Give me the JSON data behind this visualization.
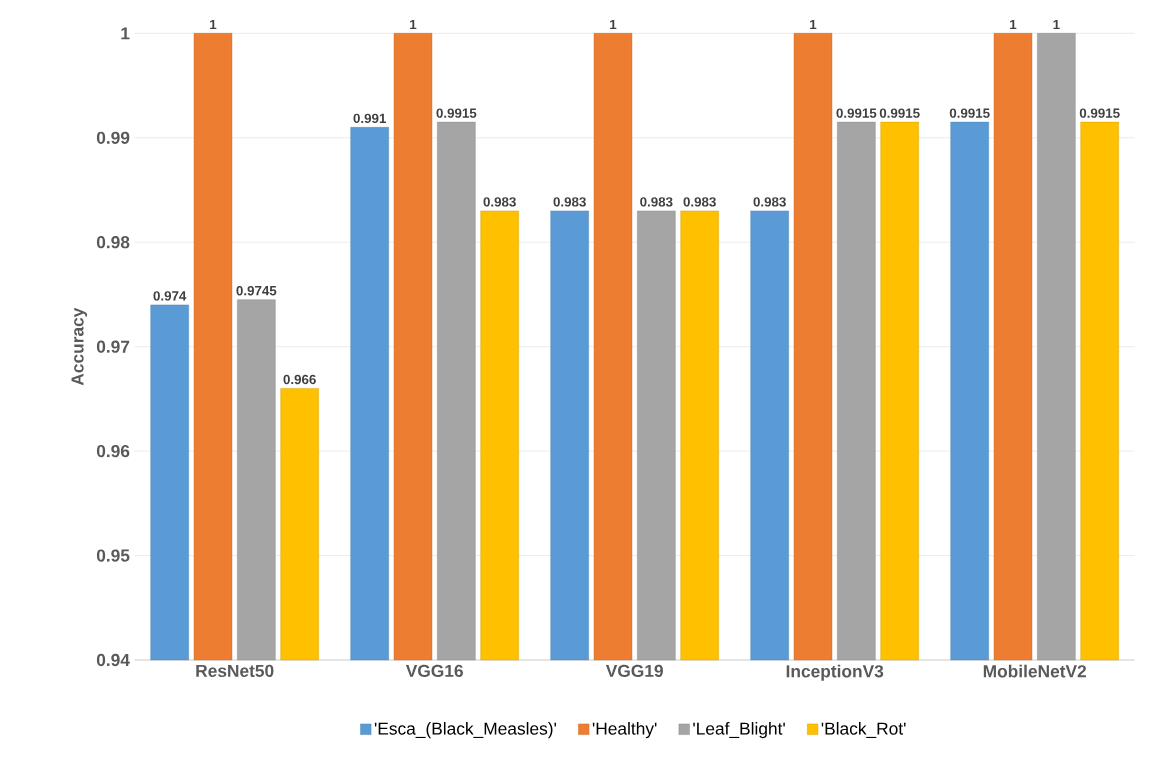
{
  "chart_data": {
    "type": "bar",
    "ylabel": "Accuracy",
    "categories": [
      "ResNet50",
      "VGG16",
      "VGG19",
      "InceptionV3",
      "MobileNetV2"
    ],
    "series": [
      {
        "name": "'Esca_(Black_Measles)'",
        "color": "#5b9bd5",
        "values": [
          0.974,
          0.991,
          0.983,
          0.983,
          0.9915
        ]
      },
      {
        "name": "'Healthy'",
        "color": "#ed7d31",
        "values": [
          1,
          1,
          1,
          1,
          1
        ]
      },
      {
        "name": "'Leaf_Blight'",
        "color": "#a5a5a5",
        "values": [
          0.9745,
          0.9915,
          0.983,
          0.9915,
          1
        ]
      },
      {
        "name": "'Black_Rot'",
        "color": "#ffc000",
        "values": [
          0.966,
          0.983,
          0.983,
          0.9915,
          0.9915
        ]
      }
    ],
    "ylim": [
      0.94,
      1
    ],
    "yticks": [
      0.94,
      0.95,
      0.96,
      0.97,
      0.98,
      0.99,
      1
    ],
    "grid": "y",
    "legend": "bottom",
    "data_labels": true
  }
}
